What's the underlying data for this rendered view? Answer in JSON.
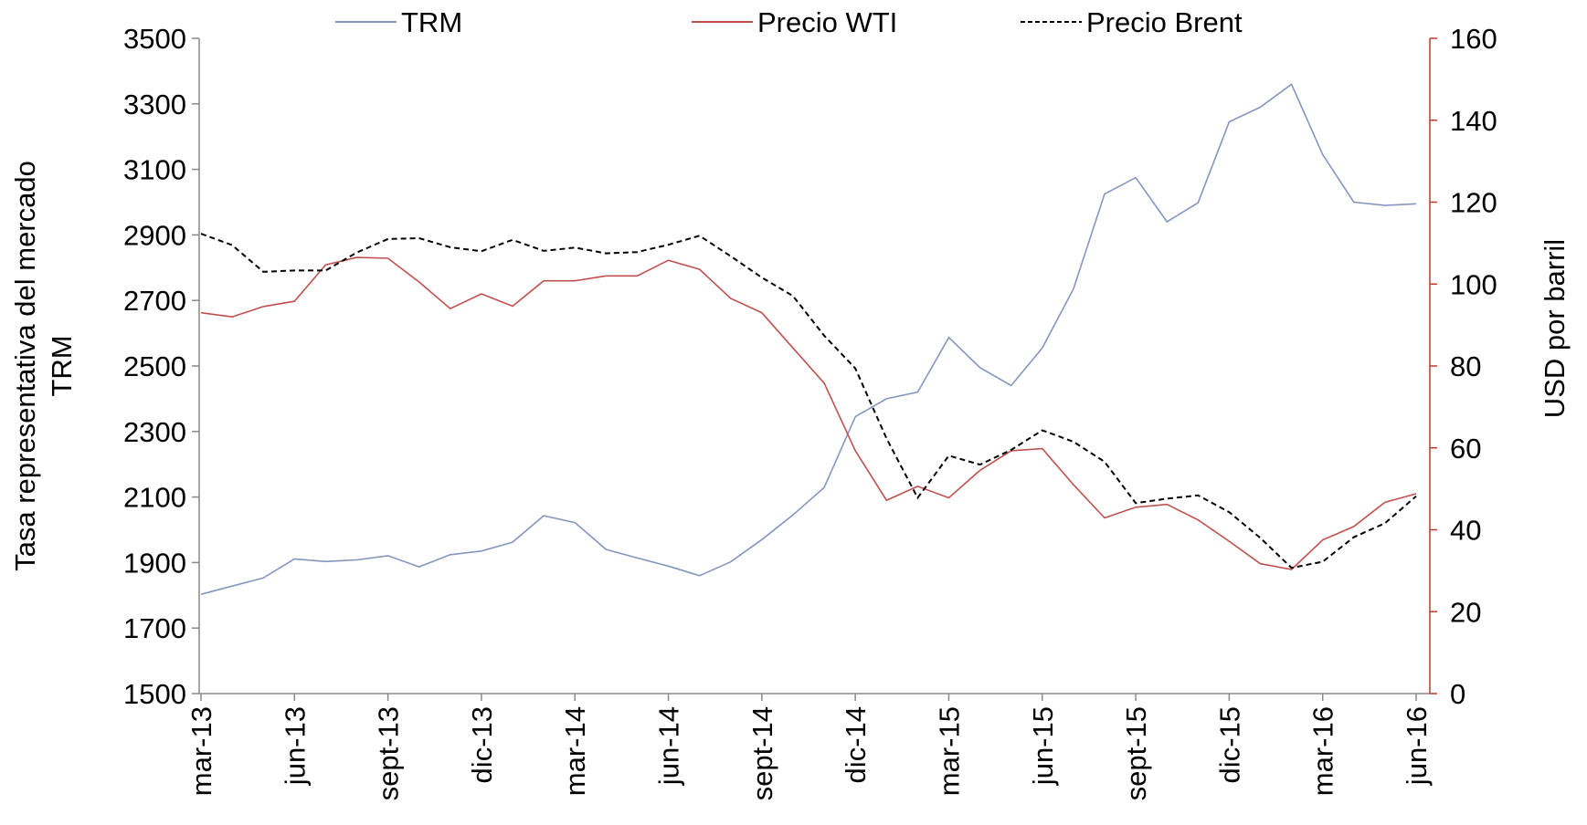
{
  "chart_data": {
    "type": "line",
    "categories": [
      "mar-13",
      null,
      null,
      "jun-13",
      null,
      null,
      "sept-13",
      null,
      null,
      "dic-13",
      null,
      null,
      "mar-14",
      null,
      null,
      "jun-14",
      null,
      null,
      "sept-14",
      null,
      null,
      "dic-14",
      null,
      null,
      "mar-15",
      null,
      null,
      "jun-15",
      null,
      null,
      "sept-15",
      null,
      null,
      "dic-15",
      null,
      null,
      "mar-16",
      null,
      null,
      "jun-16"
    ],
    "y_label": [
      "Tasa representativa del mercado",
      "TRM"
    ],
    "y2_label": "USD por barril",
    "legend": "top",
    "ylim": [
      1500,
      3500
    ],
    "yticks": [
      1500,
      1700,
      1900,
      2100,
      2300,
      2500,
      2700,
      2900,
      3100,
      3300,
      3500
    ],
    "y2lim": [
      0,
      160
    ],
    "y2ticks": [
      0,
      20,
      40,
      60,
      80,
      100,
      120,
      140,
      160
    ],
    "y2_axis_color": "#c0392b",
    "series": [
      {
        "name": "TRM",
        "color": "#8496c0",
        "style": "solid",
        "values": [
          1803,
          1828,
          1853,
          1911,
          1903,
          1908,
          1921,
          1887,
          1924,
          1935,
          1962,
          2043,
          2022,
          1940,
          1914,
          1889,
          1860,
          1902,
          1970,
          2045,
          2129,
          2345,
          2400,
          2420,
          2587,
          2495,
          2440,
          2555,
          2735,
          3025,
          3075,
          2940,
          2998,
          3245,
          3290,
          3360,
          3145,
          3000,
          2990,
          2995
        ]
      },
      {
        "name": "Precio WTI",
        "color": "#c0504d",
        "style": "solid",
        "axis": "y2",
        "values": [
          93,
          92,
          94.5,
          95.8,
          104.7,
          106.5,
          106.3,
          100.5,
          94,
          97.6,
          94.6,
          100.8,
          100.8,
          102,
          102,
          105.8,
          103.6,
          96.5,
          93,
          84.4,
          75.8,
          59.3,
          47.2,
          50.6,
          47.8,
          54.5,
          59.3,
          59.8,
          51,
          42.9,
          45.5,
          46.2,
          42.4,
          37.2,
          31.7,
          30.3,
          37.5,
          40.8,
          46.7,
          48.8
        ]
      },
      {
        "name": "Precio Brent",
        "color": "#000000",
        "style": "dashed",
        "axis": "y2",
        "values": [
          112.3,
          109.5,
          103,
          103.3,
          103.3,
          107.7,
          111,
          111.2,
          109,
          108,
          110.8,
          108.1,
          108.9,
          107.5,
          107.8,
          109.6,
          111.8,
          106.8,
          101.6,
          97.1,
          87.4,
          79.4,
          62.3,
          47.8,
          58.1,
          55.9,
          59.5,
          64.3,
          61.5,
          56.6,
          46.5,
          47.6,
          48.4,
          44.3,
          38,
          30.7,
          32.2,
          38.2,
          41.6,
          48.2
        ]
      }
    ]
  }
}
